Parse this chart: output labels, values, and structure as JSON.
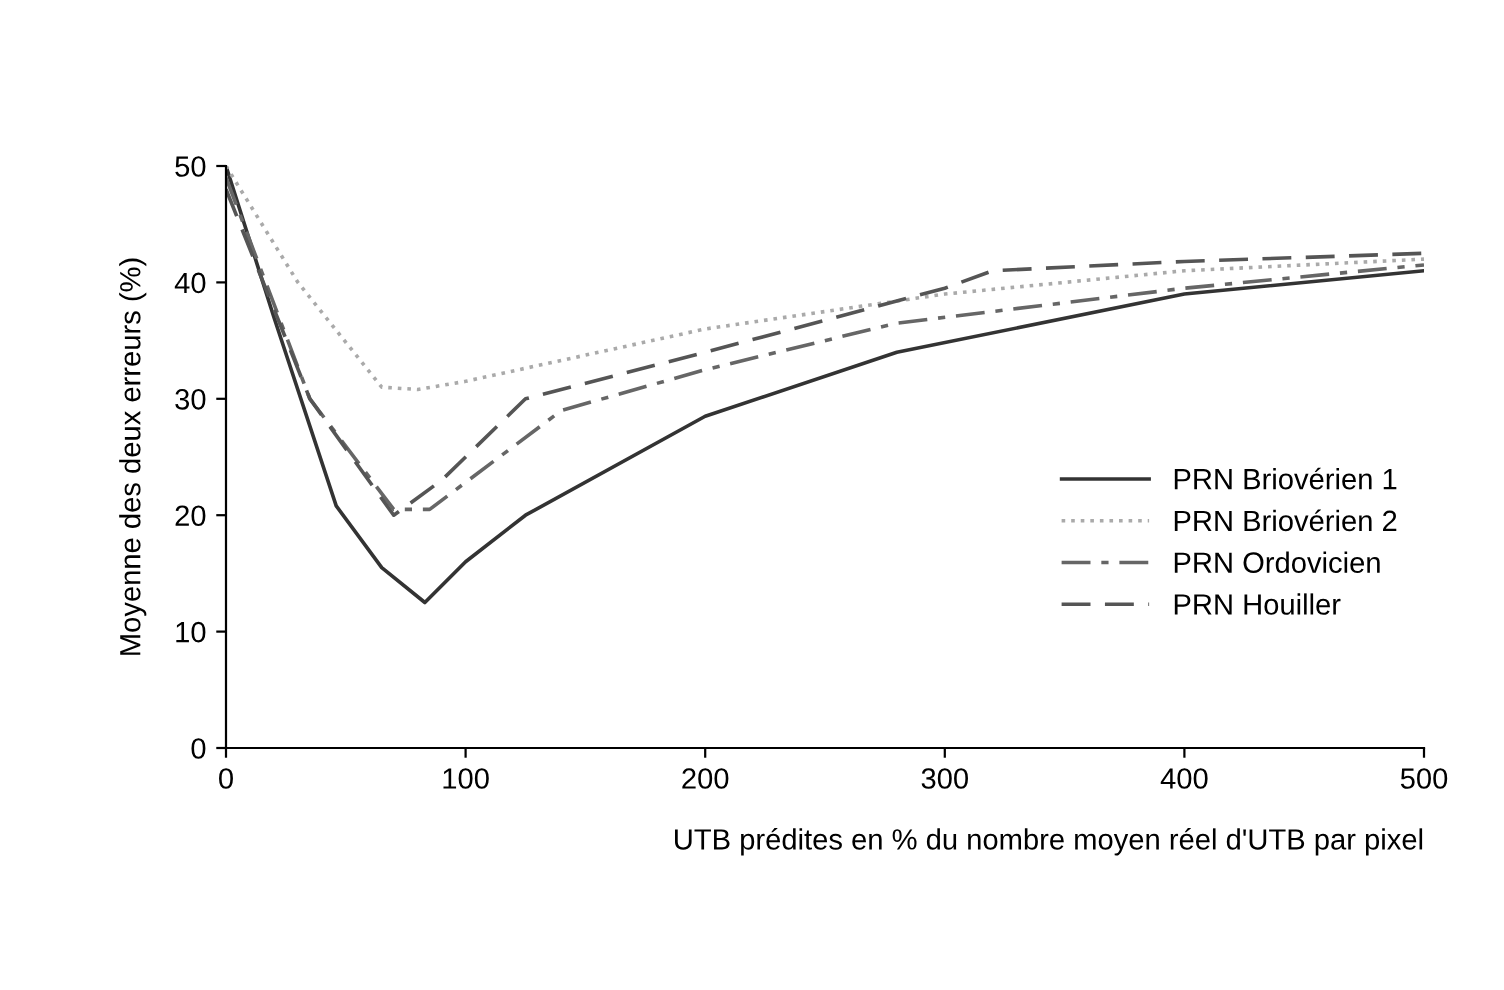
{
  "chart_data": {
    "type": "line",
    "xlabel": "UTB prédites en % du nombre moyen réel d'UTB par pixel",
    "ylabel": "Moyenne des deux erreurs (%)",
    "xlim": [
      0,
      500
    ],
    "ylim": [
      0,
      50
    ],
    "xticks": [
      0,
      100,
      200,
      300,
      400,
      500
    ],
    "yticks": [
      0,
      10,
      20,
      30,
      40,
      50
    ],
    "grid": false,
    "legend": "right",
    "marker": "none",
    "series": [
      {
        "name": "PRN Briovérien 1",
        "color": "#333333",
        "line_style": "solid",
        "x": [
          0,
          20,
          46,
          65,
          83,
          100,
          125,
          200,
          280,
          400,
          500
        ],
        "values": [
          50,
          37,
          20.8,
          15.5,
          12.5,
          16,
          20,
          28.5,
          34,
          39,
          41
        ]
      },
      {
        "name": "PRN Briovérien 2",
        "color": "#aaaaaa",
        "line_style": "dotted",
        "x": [
          0,
          30,
          65,
          80,
          100,
          200,
          300,
          400,
          500
        ],
        "values": [
          50,
          40,
          31,
          30.8,
          31.5,
          36,
          39,
          41,
          42
        ]
      },
      {
        "name": "PRN Ordovicien",
        "color": "#666666",
        "line_style": "dashdot",
        "x": [
          0,
          35,
          70,
          85,
          140,
          200,
          280,
          400,
          500
        ],
        "values": [
          49,
          30,
          20.5,
          20.5,
          29,
          32.5,
          36.5,
          39.5,
          41.5
        ]
      },
      {
        "name": "PRN Houiller",
        "color": "#555555",
        "line_style": "dashed",
        "x": [
          0,
          35,
          70,
          90,
          125,
          200,
          300,
          320,
          400,
          500
        ],
        "values": [
          48,
          30,
          20,
          23,
          30,
          34,
          39.5,
          41,
          41.8,
          42.5
        ]
      }
    ]
  }
}
